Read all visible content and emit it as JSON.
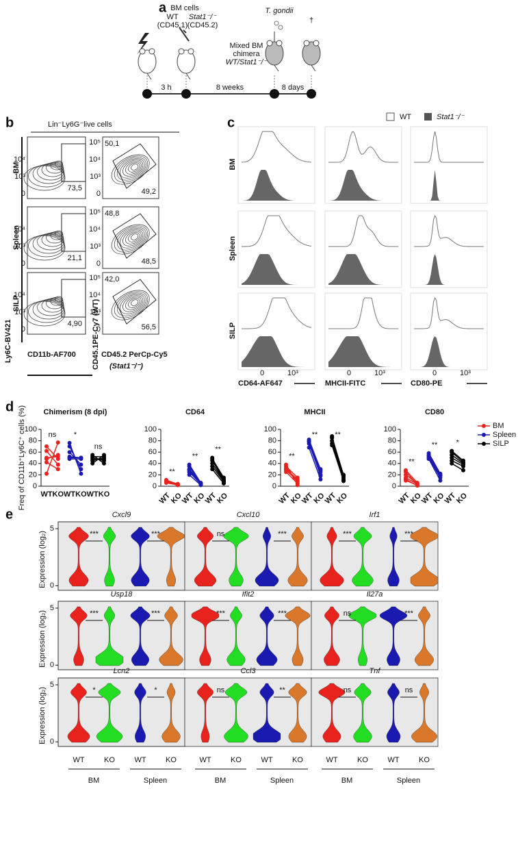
{
  "panel_a": {
    "label": "a",
    "bm_cells": "BM cells",
    "wt": "WT",
    "wt_marker": "(CD45.1)",
    "ko": "Stat1⁻/⁻",
    "ko_marker": "(CD45.2)",
    "pathogen": "T. gondii",
    "chimera": [
      "Mixed BM",
      "chimera",
      "WT/Stat1⁻/⁻"
    ],
    "dagger": "†",
    "intervals": [
      "3 h",
      "8 weeks",
      "8 days"
    ]
  },
  "panel_b": {
    "label": "b",
    "gate_header": "Lin⁻Ly6G⁻live cells",
    "rows": [
      "BM",
      "Spleen",
      "SILP"
    ],
    "y_labels": [
      "Ly6C-BV421",
      "CD45.1PE-Cy7 (WT)"
    ],
    "x_labels": [
      "CD11b-AF700",
      "CD45.2 PerCp-Cy5"
    ],
    "x_label_sub": "(Stat1⁻/⁻)",
    "gate_percentages": [
      [
        "73,5",
        "50,1",
        "49,2"
      ],
      [
        "21,1",
        "48,8",
        "48,5"
      ],
      [
        "4,90",
        "42,0",
        "56,5"
      ]
    ],
    "tick_labels": [
      "10⁵",
      "10⁴",
      "10³",
      "0"
    ]
  },
  "panel_c": {
    "label": "c",
    "legend": [
      "WT",
      "Stat1⁻/⁻"
    ],
    "rows": [
      "BM",
      "Spleen",
      "SILP"
    ],
    "x_labels": [
      "CD64-AF647",
      "MHCII-FITC",
      "CD80-PE"
    ],
    "tick_labels": [
      "0",
      "10³"
    ]
  },
  "panel_d_label": "d",
  "chart_data": [
    {
      "type": "line",
      "title": "Chimerism (8 dpi)",
      "ylabel": "Freq of CD11b⁺Ly6C⁺ cells (%)",
      "categories": [
        "WT",
        "KO",
        "WT",
        "KO",
        "WT",
        "KO"
      ],
      "ylim": [
        0,
        100
      ],
      "yticks": [
        0,
        20,
        40,
        60,
        80,
        100
      ],
      "significance": [
        "ns",
        "*",
        "ns"
      ],
      "series": [
        {
          "name": "BM",
          "color": "#e8231e",
          "wt_values": [
            22,
            42,
            48,
            50,
            62,
            70
          ],
          "ko_values": [
            77,
            30,
            55,
            52,
            38,
            48
          ]
        },
        {
          "name": "Spleen",
          "color": "#1a1ab0",
          "wt_values": [
            76,
            70,
            60,
            52,
            48,
            50
          ],
          "ko_values": [
            22,
            30,
            38,
            50,
            48,
            50
          ]
        },
        {
          "name": "SILP",
          "color": "#000000",
          "wt_values": [
            40,
            45,
            50,
            48,
            55,
            52
          ],
          "ko_values": [
            55,
            50,
            45,
            48,
            40,
            52
          ]
        }
      ]
    },
    {
      "type": "line",
      "title": "CD64",
      "categories": [
        "WT",
        "KO",
        "WT",
        "KO",
        "WT",
        "KO"
      ],
      "ylim": [
        0,
        100
      ],
      "yticks": [
        0,
        20,
        40,
        60,
        80,
        100
      ],
      "significance": [
        "**",
        "**",
        "**"
      ],
      "series": [
        {
          "name": "BM",
          "color": "#e8231e",
          "wt_values": [
            6,
            8,
            10,
            9,
            7,
            11
          ],
          "ko_values": [
            2,
            3,
            4,
            2,
            3,
            3
          ]
        },
        {
          "name": "Spleen",
          "color": "#1a1ab0",
          "wt_values": [
            20,
            28,
            30,
            35,
            38,
            25
          ],
          "ko_values": [
            2,
            4,
            5,
            3,
            6,
            4
          ]
        },
        {
          "name": "SILP",
          "color": "#000000",
          "wt_values": [
            30,
            35,
            40,
            45,
            48,
            50
          ],
          "ko_values": [
            5,
            8,
            10,
            12,
            15,
            7
          ]
        }
      ]
    },
    {
      "type": "line",
      "title": "MHCII",
      "categories": [
        "WT",
        "KO",
        "WT",
        "KO",
        "WT",
        "KO"
      ],
      "ylim": [
        0,
        100
      ],
      "yticks": [
        0,
        20,
        40,
        60,
        80,
        100
      ],
      "significance": [
        "**",
        "**",
        "**"
      ],
      "series": [
        {
          "name": "BM",
          "color": "#e8231e",
          "wt_values": [
            25,
            28,
            30,
            35,
            38,
            32
          ],
          "ko_values": [
            5,
            10,
            12,
            15,
            2,
            8
          ]
        },
        {
          "name": "Spleen",
          "color": "#1a1ab0",
          "wt_values": [
            68,
            75,
            78,
            80,
            82,
            79
          ],
          "ko_values": [
            12,
            20,
            25,
            30,
            28,
            18
          ]
        },
        {
          "name": "SILP",
          "color": "#000000",
          "wt_values": [
            72,
            75,
            85,
            88,
            86,
            80
          ],
          "ko_values": [
            10,
            15,
            18,
            12,
            20,
            9
          ]
        }
      ]
    },
    {
      "type": "line",
      "title": "CD80",
      "categories": [
        "WT",
        "KO",
        "WT",
        "KO",
        "WT",
        "KO"
      ],
      "ylim": [
        0,
        100
      ],
      "yticks": [
        0,
        20,
        40,
        60,
        80,
        100
      ],
      "significance": [
        "**",
        "**",
        "*"
      ],
      "series": [
        {
          "name": "BM",
          "color": "#e8231e",
          "wt_values": [
            10,
            15,
            20,
            25,
            28,
            12
          ],
          "ko_values": [
            2,
            4,
            5,
            3,
            6,
            1
          ]
        },
        {
          "name": "Spleen",
          "color": "#1a1ab0",
          "wt_values": [
            48,
            50,
            52,
            55,
            58,
            54
          ],
          "ko_values": [
            10,
            15,
            18,
            20,
            22,
            19
          ]
        },
        {
          "name": "SILP",
          "color": "#000000",
          "wt_values": [
            40,
            45,
            50,
            55,
            60,
            62
          ],
          "ko_values": [
            28,
            35,
            38,
            40,
            42,
            45
          ]
        }
      ]
    }
  ],
  "panel_e": {
    "label": "e",
    "ylabel": "Expression (log₂)",
    "ylim": [
      -0.4,
      5.6
    ],
    "yticks": [
      0,
      5
    ],
    "groups": [
      "WT",
      "KO",
      "WT",
      "KO"
    ],
    "tissues": [
      "BM",
      "Spleen"
    ],
    "colors": [
      "#e8231e",
      "#22dd22",
      "#1a1ab0",
      "#d9782a"
    ],
    "genes": [
      {
        "name": "Cxcl9",
        "significance": [
          "***",
          "***"
        ]
      },
      {
        "name": "Cxcl10",
        "significance": [
          "ns",
          "***"
        ]
      },
      {
        "name": "Irf1",
        "significance": [
          "***",
          "***"
        ]
      },
      {
        "name": "Usp18",
        "significance": [
          "***",
          "***"
        ]
      },
      {
        "name": "Ifit2",
        "significance": [
          "***",
          "***"
        ]
      },
      {
        "name": "Il27a",
        "significance": [
          "ns",
          "***"
        ]
      },
      {
        "name": "Lcn2",
        "significance": [
          "*",
          "*"
        ]
      },
      {
        "name": "Ccl3",
        "significance": [
          "ns",
          "**"
        ]
      },
      {
        "name": "Tnf",
        "significance": [
          "ns",
          "ns"
        ]
      }
    ]
  }
}
